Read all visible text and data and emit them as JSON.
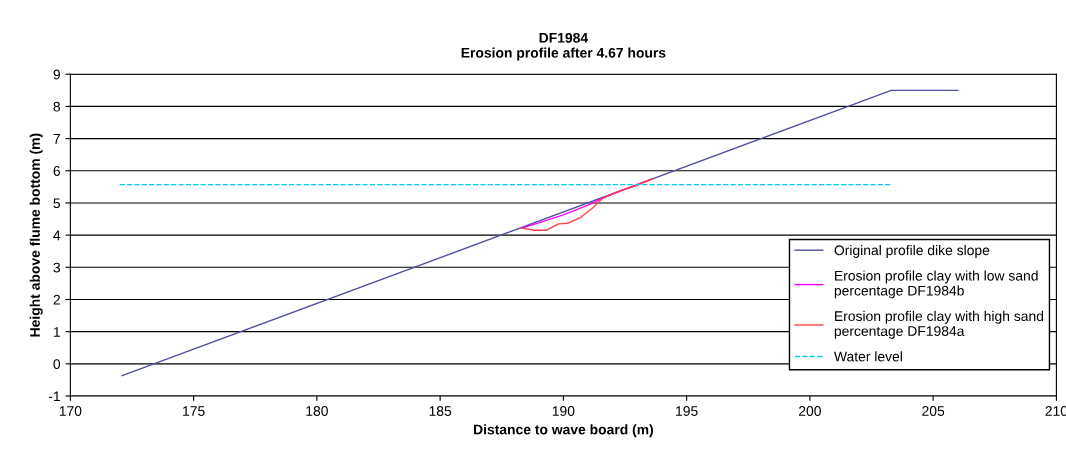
{
  "chart_data": {
    "type": "line",
    "title": "DF1984\nErosion profile after 4.67 hours",
    "xlabel": "Distance to wave board (m)",
    "ylabel": "Height above flume bottom (m)",
    "xlim": [
      170,
      210
    ],
    "xticks": [
      170,
      175,
      180,
      185,
      190,
      195,
      200,
      205,
      210
    ],
    "ylim": [
      -1,
      9
    ],
    "yticks": [
      -1,
      0,
      1,
      2,
      3,
      4,
      5,
      6,
      7,
      8,
      9
    ],
    "grid": "y",
    "legend": "lower right",
    "series": [
      {
        "name": "Original profile dike slope",
        "color": "#5050a0",
        "x": [
          172.1,
          203.3,
          206.0
        ],
        "values": [
          -0.37,
          8.5,
          8.5
        ]
      },
      {
        "name": "Erosion profile clay with low sand\npercentage DF1984b",
        "color": "#ff00ff",
        "x": [
          188.3,
          189.0,
          190.0,
          191.0,
          191.6,
          192.5,
          193.6
        ],
        "values": [
          4.22,
          4.38,
          4.63,
          4.93,
          5.15,
          5.42,
          5.75
        ]
      },
      {
        "name": "Erosion profile clay with high sand\npercentage DF1984a",
        "color": "#ff4040",
        "x": [
          188.3,
          188.8,
          189.3,
          189.8,
          190.2,
          190.7,
          191.2,
          191.6,
          192.2,
          193.0,
          193.6
        ],
        "values": [
          4.22,
          4.15,
          4.15,
          4.35,
          4.37,
          4.55,
          4.85,
          5.15,
          5.35,
          5.55,
          5.75
        ]
      },
      {
        "name": "Water level",
        "color": "#00ccee",
        "line_style": "dashed",
        "x": [
          172.0,
          203.3
        ],
        "values": [
          5.57,
          5.57
        ]
      }
    ]
  }
}
